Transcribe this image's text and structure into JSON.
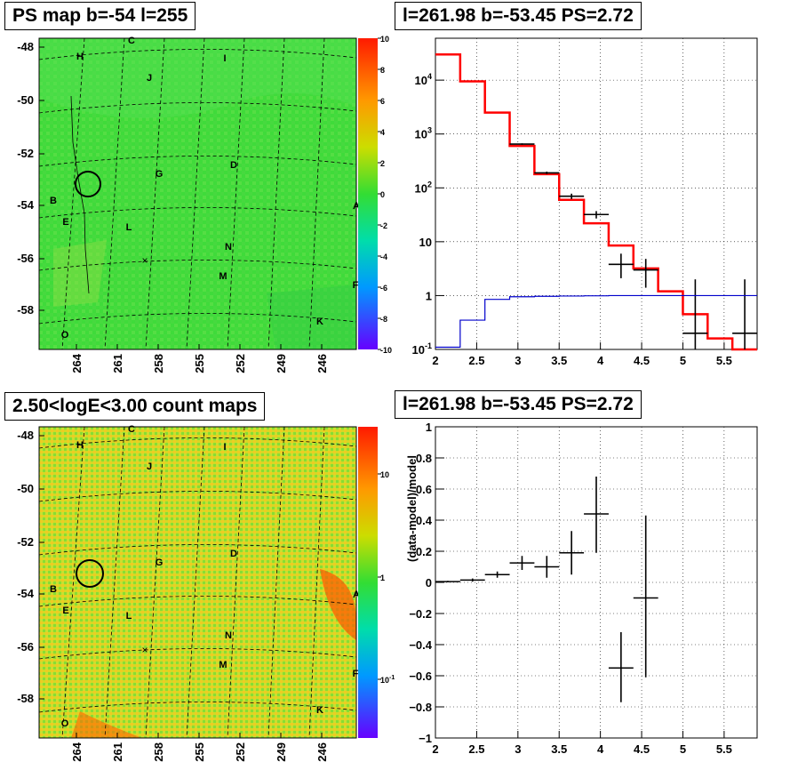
{
  "titles": {
    "map_top": "PS map b=-54 l=255",
    "spectrum": "l=261.98 b=-53.45 PS=2.72",
    "map_bottom": "2.50<logE<3.00 count maps",
    "residual": "l=261.98 b=-53.45 PS=2.72"
  },
  "colors": {
    "model": "#ff0000",
    "data": "#000000",
    "background_model": "#0000cc",
    "map_top_bg": "#33dd33",
    "map_bottom_bg": "#cccc22"
  },
  "map_axes": {
    "lat_ticks": [
      "-48",
      "-50",
      "-52",
      "-54",
      "-56",
      "-58"
    ],
    "lon_ticks": [
      "264",
      "261",
      "258",
      "255",
      "252",
      "249",
      "246"
    ]
  },
  "map_labels": [
    {
      "t": "C"
    },
    {
      "t": "H"
    },
    {
      "t": "I"
    },
    {
      "t": "J"
    },
    {
      "t": "D"
    },
    {
      "t": "G"
    },
    {
      "t": "B"
    },
    {
      "t": "A"
    },
    {
      "t": "E"
    },
    {
      "t": "L"
    },
    {
      "t": "N"
    },
    {
      "t": "M"
    },
    {
      "t": "F"
    },
    {
      "t": "K"
    },
    {
      "t": "O"
    }
  ],
  "colorbar_top": {
    "ticks": [
      "10",
      "8",
      "6",
      "4",
      "2",
      "0",
      "-2",
      "-4",
      "-6",
      "-8",
      "-10"
    ]
  },
  "colorbar_bottom": {
    "ticks": [
      "10",
      "1",
      "10-1"
    ]
  },
  "chart_data": [
    {
      "type": "line",
      "title": "l=261.98 b=-53.45 PS=2.72",
      "log_y": true,
      "xlim": [
        2,
        5.9
      ],
      "ylim": [
        0.1,
        60000
      ],
      "x_ticks": [
        "2",
        "2.5",
        "3",
        "3.5",
        "4",
        "4.5",
        "5",
        "5.5"
      ],
      "y_ticks": [
        "10-1",
        "1",
        "10",
        "102",
        "103",
        "104"
      ],
      "grid": true,
      "series": [
        {
          "role": "model",
          "edges": [
            2,
            2.3,
            2.6,
            2.9,
            3.2,
            3.5,
            3.8,
            4.1,
            4.4,
            4.7,
            5.0,
            5.3,
            5.6,
            5.9
          ],
          "values": [
            30000,
            9500,
            2500,
            600,
            180,
            60,
            22,
            8.5,
            3.2,
            1.2,
            0.45,
            0.16,
            0.09
          ]
        },
        {
          "role": "data",
          "points": [
            {
              "x": 3.05,
              "y": 650,
              "ylo": 630,
              "yhi": 670
            },
            {
              "x": 3.35,
              "y": 190,
              "ylo": 180,
              "yhi": 200
            },
            {
              "x": 3.65,
              "y": 70,
              "ylo": 62,
              "yhi": 78
            },
            {
              "x": 3.95,
              "y": 32,
              "ylo": 27,
              "yhi": 37
            },
            {
              "x": 4.25,
              "y": 3.8,
              "ylo": 2.1,
              "yhi": 6.0
            },
            {
              "x": 4.55,
              "y": 3.0,
              "ylo": 1.4,
              "yhi": 4.8
            },
            {
              "x": 5.15,
              "y": 0.2,
              "ylo": 0.1,
              "yhi": 2.0
            },
            {
              "x": 5.75,
              "y": 0.2,
              "ylo": 0.1,
              "yhi": 2.0
            }
          ]
        },
        {
          "role": "background",
          "edges": [
            2,
            2.3,
            2.6,
            2.9,
            3.2,
            3.5,
            3.8,
            4.1,
            4.4,
            4.7,
            5.0,
            5.3,
            5.6,
            5.9
          ],
          "values": [
            0.11,
            0.35,
            0.85,
            0.95,
            0.97,
            0.98,
            0.99,
            1,
            1,
            1,
            1,
            1,
            1
          ]
        }
      ]
    },
    {
      "type": "scatter",
      "title": "l=261.98 b=-53.45 PS=2.72",
      "ylabel": "(data-model)/model",
      "xlim": [
        2,
        5.9
      ],
      "ylim": [
        -1,
        1
      ],
      "x_ticks": [
        "2",
        "2.5",
        "3",
        "3.5",
        "4",
        "4.5",
        "5",
        "5.5"
      ],
      "y_ticks": [
        "1",
        "0.8",
        "0.6",
        "0.4",
        "0.2",
        "0",
        "-0.2",
        "-0.4",
        "-0.6",
        "-0.8",
        "-1"
      ],
      "grid": true,
      "points": [
        {
          "x": 2.15,
          "xlo": 2.0,
          "xhi": 2.3,
          "y": 0.005,
          "ylo": 0.0,
          "yhi": 0.01
        },
        {
          "x": 2.45,
          "xlo": 2.3,
          "xhi": 2.6,
          "y": 0.015,
          "ylo": 0.005,
          "yhi": 0.025
        },
        {
          "x": 2.75,
          "xlo": 2.6,
          "xhi": 2.9,
          "y": 0.05,
          "ylo": 0.03,
          "yhi": 0.07
        },
        {
          "x": 3.05,
          "xlo": 2.9,
          "xhi": 3.2,
          "y": 0.125,
          "ylo": 0.08,
          "yhi": 0.17
        },
        {
          "x": 3.35,
          "xlo": 3.2,
          "xhi": 3.5,
          "y": 0.1,
          "ylo": 0.03,
          "yhi": 0.17
        },
        {
          "x": 3.65,
          "xlo": 3.5,
          "xhi": 3.8,
          "y": 0.19,
          "ylo": 0.05,
          "yhi": 0.33
        },
        {
          "x": 3.95,
          "xlo": 3.8,
          "xhi": 4.1,
          "y": 0.44,
          "ylo": 0.19,
          "yhi": 0.68
        },
        {
          "x": 4.25,
          "xlo": 4.1,
          "xhi": 4.4,
          "y": -0.55,
          "ylo": -0.77,
          "yhi": -0.32
        },
        {
          "x": 4.55,
          "xlo": 4.4,
          "xhi": 4.7,
          "y": -0.1,
          "ylo": -0.61,
          "yhi": 0.43
        }
      ]
    }
  ]
}
